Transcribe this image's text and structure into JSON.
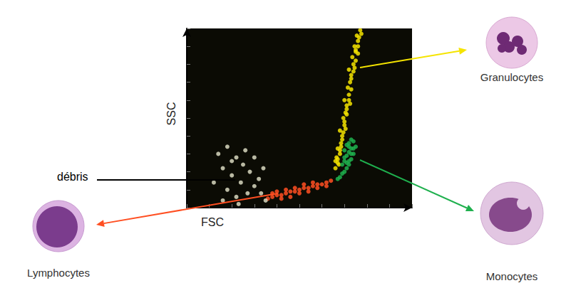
{
  "chart_data": {
    "type": "scatter",
    "x_label": "FSC",
    "y_label": "SSC",
    "xlim": [
      0,
      100
    ],
    "ylim": [
      0,
      100
    ],
    "xticks": [
      0,
      10,
      20,
      30,
      40,
      50,
      60,
      70,
      80,
      90,
      100
    ],
    "yticks": [
      0,
      10,
      20,
      30,
      40,
      50,
      60,
      70,
      80,
      90,
      100
    ],
    "tick_labels": false,
    "grid": false,
    "series": [
      {
        "name": "Granulocytes",
        "color": "#f5e400",
        "values": [
          [
            66,
            22
          ],
          [
            67,
            25
          ],
          [
            66.5,
            28
          ],
          [
            68,
            30
          ],
          [
            67,
            33
          ],
          [
            68.5,
            36
          ],
          [
            69,
            40
          ],
          [
            68,
            43
          ],
          [
            70,
            46
          ],
          [
            69.5,
            50
          ],
          [
            70.5,
            53
          ],
          [
            71,
            57
          ],
          [
            70,
            60
          ],
          [
            72,
            63
          ],
          [
            71.5,
            67
          ],
          [
            72.5,
            70
          ],
          [
            73,
            74
          ],
          [
            72,
            77
          ],
          [
            74,
            80
          ],
          [
            73.5,
            84
          ],
          [
            75,
            87
          ],
          [
            74.5,
            90
          ],
          [
            76,
            93
          ],
          [
            75.5,
            96
          ],
          [
            77,
            99
          ],
          [
            67.5,
            24
          ],
          [
            69,
            38
          ],
          [
            71,
            55
          ],
          [
            73,
            72
          ],
          [
            75,
            88
          ],
          [
            67,
            27
          ],
          [
            68,
            32
          ],
          [
            69.5,
            42
          ],
          [
            70,
            48
          ],
          [
            71,
            52
          ],
          [
            72,
            60
          ],
          [
            73,
            66
          ],
          [
            74,
            76
          ],
          [
            75,
            82
          ],
          [
            76,
            90
          ],
          [
            76.5,
            95
          ],
          [
            66,
            26
          ],
          [
            68.5,
            34
          ],
          [
            70.5,
            44
          ],
          [
            72.5,
            58
          ],
          [
            74.5,
            78
          ],
          [
            76,
            86
          ],
          [
            77.5,
            97
          ]
        ]
      },
      {
        "name": "Monocytes",
        "color": "#1fb04e",
        "values": [
          [
            70,
            20
          ],
          [
            71,
            22
          ],
          [
            69,
            19
          ],
          [
            72,
            24
          ],
          [
            70,
            26
          ],
          [
            73,
            27
          ],
          [
            71,
            29
          ],
          [
            74,
            30
          ],
          [
            72,
            31
          ],
          [
            70,
            32
          ],
          [
            73,
            33
          ],
          [
            75,
            34
          ],
          [
            71,
            35
          ],
          [
            72,
            36
          ],
          [
            74,
            37
          ],
          [
            73,
            38
          ],
          [
            69,
            24
          ],
          [
            68,
            17
          ],
          [
            67,
            16
          ],
          [
            70,
            28
          ],
          [
            72,
            26
          ],
          [
            74,
            33
          ],
          [
            71,
            25
          ],
          [
            73,
            30
          ],
          [
            72,
            34
          ]
        ]
      },
      {
        "name": "Lymphocytes",
        "color": "#ff4f22",
        "values": [
          [
            36,
            5
          ],
          [
            38,
            6
          ],
          [
            40,
            7
          ],
          [
            42,
            7
          ],
          [
            44,
            8
          ],
          [
            46,
            9
          ],
          [
            48,
            9
          ],
          [
            50,
            10
          ],
          [
            52,
            11
          ],
          [
            54,
            11
          ],
          [
            56,
            12
          ],
          [
            58,
            13
          ],
          [
            60,
            13
          ],
          [
            62,
            14
          ],
          [
            40,
            9
          ],
          [
            44,
            10
          ],
          [
            48,
            11
          ],
          [
            52,
            13
          ],
          [
            56,
            14
          ],
          [
            42,
            5
          ],
          [
            46,
            6
          ],
          [
            50,
            8
          ],
          [
            54,
            9
          ],
          [
            58,
            11
          ],
          [
            38,
            8
          ],
          [
            62,
            12
          ],
          [
            64,
            15
          ]
        ]
      },
      {
        "name": "débris",
        "color": "#d8d8c0",
        "values": [
          [
            14,
            30
          ],
          [
            18,
            34
          ],
          [
            22,
            28
          ],
          [
            16,
            22
          ],
          [
            20,
            18
          ],
          [
            25,
            24
          ],
          [
            28,
            20
          ],
          [
            24,
            14
          ],
          [
            30,
            12
          ],
          [
            18,
            10
          ],
          [
            22,
            6
          ],
          [
            27,
            8
          ],
          [
            32,
            16
          ],
          [
            12,
            14
          ],
          [
            34,
            22
          ],
          [
            26,
            32
          ],
          [
            20,
            26
          ],
          [
            30,
            28
          ],
          [
            16,
            4
          ],
          [
            33,
            8
          ],
          [
            35,
            4
          ],
          [
            23,
            2
          ]
        ]
      }
    ]
  }
}
